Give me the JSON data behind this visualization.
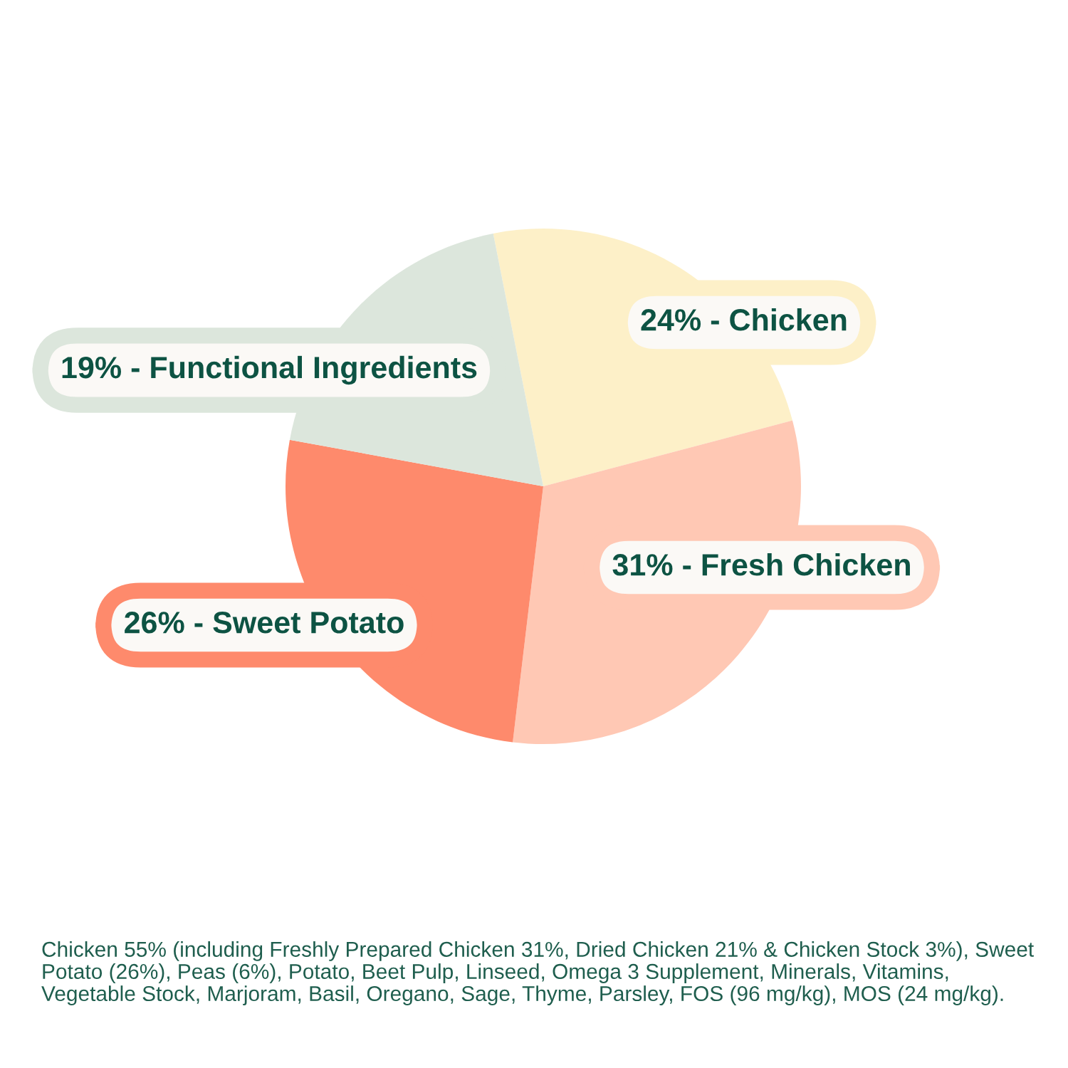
{
  "chart_data": {
    "type": "pie",
    "categories": [
      "24% - Chicken",
      "31% - Fresh Chicken",
      "26% - Sweet Potato",
      "19% - Functional Ingredients"
    ],
    "values": [
      24,
      31,
      26,
      19
    ],
    "colors": [
      "#fdf0c8",
      "#ffc8b4",
      "#fe8a6c",
      "#dce6dc"
    ],
    "annotations": [
      "Chicken 55% (including Freshly Prepared Chicken 31%, Dried Chicken 21% & Chicken Stock 3%), Sweet Potato (26%), Peas (6%), Potato, Beet Pulp, Linseed, Omega 3 Supplement, Minerals, Vitamins, Vegetable Stock, Marjoram, Basil, Oregano, Sage, Thyme, Parsley, FOS (96 mg/kg), MOS (24 mg/kg)."
    ]
  }
}
